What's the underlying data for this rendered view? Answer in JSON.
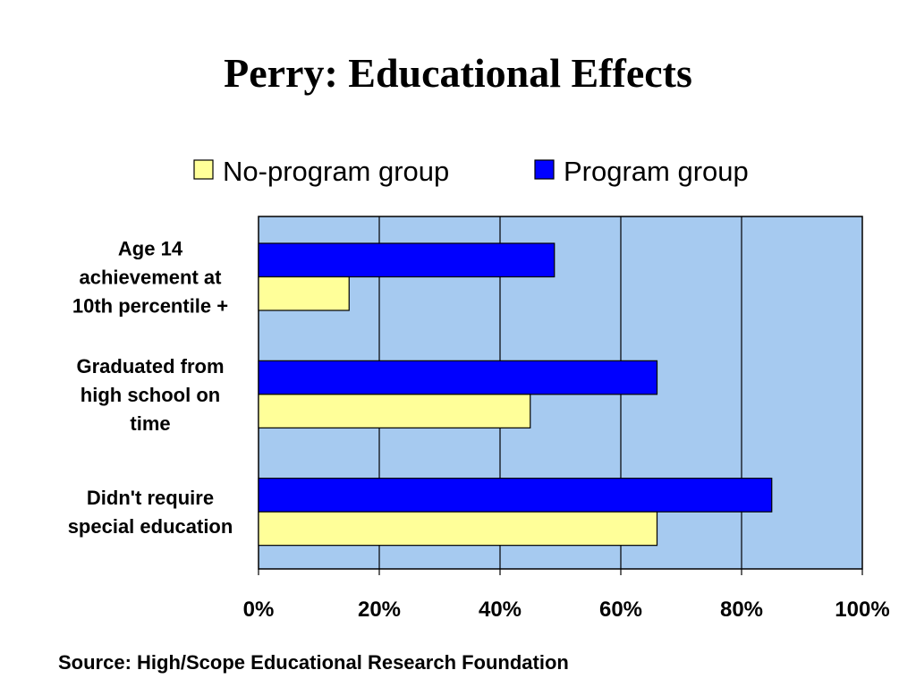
{
  "chart_data": {
    "type": "bar",
    "orientation": "horizontal",
    "title": "Perry: Educational Effects",
    "categories": [
      [
        "Age 14",
        "achievement at",
        "10th percentile +"
      ],
      [
        "Graduated from",
        "high school on",
        "time"
      ],
      [
        "Didn't require",
        "special education"
      ]
    ],
    "series": [
      {
        "name": "No-program group",
        "values": [
          15,
          45,
          66
        ],
        "color": "#FFFF99"
      },
      {
        "name": "Program group",
        "values": [
          49,
          66,
          85
        ],
        "color": "#0000FF"
      }
    ],
    "xlim": [
      0,
      100
    ],
    "x_ticks": [
      "0%",
      "20%",
      "40%",
      "60%",
      "80%",
      "100%"
    ],
    "x_tick_values": [
      0,
      20,
      40,
      60,
      80,
      100
    ],
    "unit": "%",
    "plot_background": "#A6CAF0",
    "grid": true,
    "legend_placement": "top"
  },
  "source_note": "Source: High/Scope Educational Research Foundation"
}
